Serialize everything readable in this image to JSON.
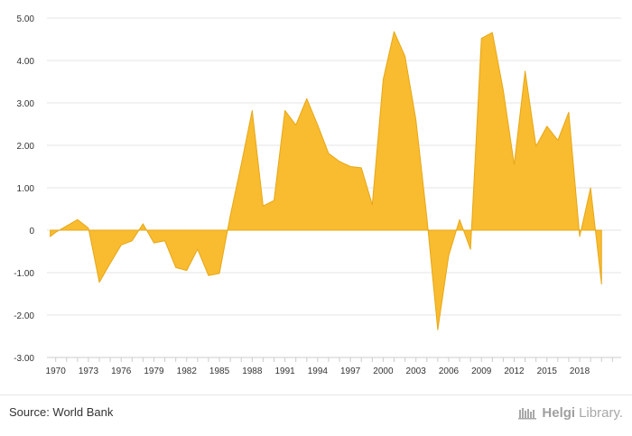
{
  "chart_data": {
    "type": "area",
    "title": "",
    "xlabel": "",
    "ylabel": "",
    "ylim": [
      -3,
      5
    ],
    "xlim": [
      1969.2,
      2021.8
    ],
    "grid": true,
    "fill_color": "#f9bb2f",
    "line_color": "#e6a817",
    "y_ticks": [
      "-3.00",
      "-2.00",
      "-1.00",
      "0",
      "1.00",
      "2.00",
      "3.00",
      "4.00",
      "5.00"
    ],
    "x_ticks": [
      "1970",
      "1973",
      "1976",
      "1979",
      "1982",
      "1985",
      "1988",
      "1991",
      "1994",
      "1997",
      "2000",
      "2003",
      "2006",
      "2009",
      "2012",
      "2015",
      "2018"
    ],
    "x": [
      1969.5,
      1970,
      1971,
      1972,
      1973,
      1974,
      1975,
      1976,
      1977,
      1978,
      1979,
      1980,
      1981,
      1982,
      1983,
      1984,
      1985,
      1986,
      1987,
      1988,
      1989,
      1990,
      1991,
      1992,
      1993,
      1994,
      1995,
      1996,
      1997,
      1998,
      1999,
      2000,
      2001,
      2002,
      2003,
      2004,
      2005,
      2006,
      2007,
      2008,
      2009,
      2010,
      2011,
      2012,
      2013,
      2014,
      2015,
      2016,
      2017,
      2018,
      2019,
      2020
    ],
    "values": [
      -0.15,
      -0.05,
      0.1,
      0.25,
      0.05,
      -1.23,
      -0.78,
      -0.35,
      -0.25,
      0.15,
      -0.3,
      -0.25,
      -0.88,
      -0.95,
      -0.45,
      -1.07,
      -1.02,
      0.35,
      1.55,
      2.82,
      0.57,
      0.7,
      2.82,
      2.48,
      3.1,
      2.48,
      1.81,
      1.62,
      1.5,
      1.47,
      0.6,
      3.55,
      4.68,
      4.1,
      2.6,
      0.3,
      -2.35,
      -0.6,
      0.25,
      -0.45,
      4.52,
      4.66,
      3.3,
      1.55,
      3.75,
      1.98,
      2.45,
      2.12,
      2.78,
      -0.15,
      1.0,
      -1.27
    ]
  },
  "footer": {
    "source": "Source: World Bank",
    "brand_name": "Helgi",
    "brand_suffix": "Library."
  }
}
